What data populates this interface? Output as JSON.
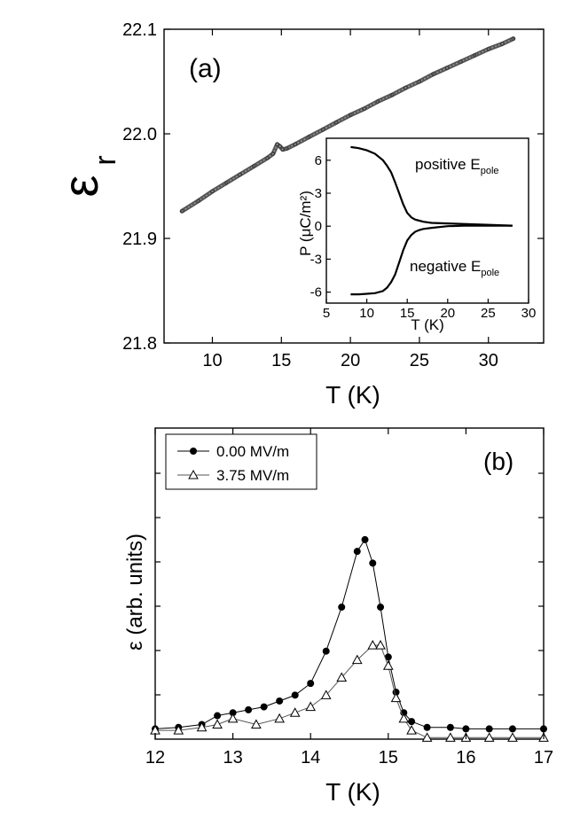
{
  "chart_data": [
    {
      "type": "line",
      "panel_label": "(a)",
      "xlabel": "T (K)",
      "ylabel": "ε",
      "ylabel_sub": "r",
      "xlim": [
        6.5,
        34
      ],
      "ylim": [
        21.8,
        22.1
      ],
      "xticks": [
        "10",
        "15",
        "20",
        "25",
        "30"
      ],
      "yticks": [
        "21.8",
        "21.9",
        "22.0",
        "22.1"
      ],
      "series_style": "dense open circles (dark gray)",
      "series": [
        {
          "x": [
            7.8,
            9,
            10,
            11,
            12,
            13,
            14,
            14.4,
            14.7,
            14.9,
            15.1,
            15.4,
            16,
            17,
            18,
            19,
            20,
            21,
            22,
            23,
            24,
            25,
            26,
            27,
            28,
            29,
            30,
            31,
            31.8
          ],
          "y": [
            21.926,
            21.936,
            21.945,
            21.953,
            21.961,
            21.969,
            21.977,
            21.981,
            21.99,
            21.988,
            21.985,
            21.986,
            21.99,
            21.997,
            22.004,
            22.011,
            22.018,
            22.024,
            22.031,
            22.037,
            22.044,
            22.05,
            22.057,
            22.063,
            22.069,
            22.075,
            22.081,
            22.086,
            22.091
          ]
        }
      ],
      "inset": {
        "type": "line",
        "xlabel": "T (K)",
        "ylabel": "P (μC/m²)",
        "xlim": [
          5,
          30
        ],
        "ylim": [
          -7,
          8
        ],
        "xticks": [
          "5",
          "10",
          "15",
          "20",
          "25",
          "30"
        ],
        "yticks": [
          "-6",
          "-3",
          "0",
          "3",
          "6"
        ],
        "annotations": [
          {
            "text": "positive E",
            "sub": "pole"
          },
          {
            "text": "negative E",
            "sub": "pole"
          }
        ],
        "series": [
          {
            "name": "positive E_pole",
            "x": [
              8,
              9,
              10,
              11,
              12,
              12.5,
              13,
              13.5,
              14,
              14.5,
              15,
              15.5,
              16,
              16.5,
              17,
              18,
              20,
              22,
              24,
              26,
              28
            ],
            "y": [
              7.2,
              7.1,
              6.9,
              6.6,
              6.0,
              5.5,
              4.9,
              4.0,
              3.0,
              2.0,
              1.2,
              0.8,
              0.6,
              0.5,
              0.4,
              0.3,
              0.25,
              0.2,
              0.15,
              0.1,
              0.05
            ]
          },
          {
            "name": "negative E_pole",
            "x": [
              8,
              9,
              10,
              11,
              12,
              12.5,
              13,
              13.5,
              14,
              14.5,
              15,
              15.5,
              16,
              16.5,
              17,
              18,
              20,
              22,
              24,
              26,
              28
            ],
            "y": [
              -6.2,
              -6.2,
              -6.15,
              -6.1,
              -5.9,
              -5.6,
              -5.1,
              -4.4,
              -3.3,
              -2.2,
              -1.3,
              -0.8,
              -0.5,
              -0.35,
              -0.25,
              -0.15,
              0.0,
              0.05,
              0.05,
              0.05,
              0.05
            ]
          }
        ]
      }
    },
    {
      "type": "line",
      "panel_label": "(b)",
      "xlabel": "T (K)",
      "ylabel": "ε (arb. units)",
      "xlim": [
        12,
        17
      ],
      "ylim": [
        0,
        100
      ],
      "xticks": [
        "12",
        "13",
        "14",
        "15",
        "16",
        "17"
      ],
      "yticks": [],
      "legend_position": "top-left",
      "series": [
        {
          "name": "0.00 MV/m",
          "marker": "filled-circle",
          "x": [
            12.0,
            12.3,
            12.6,
            12.8,
            13.0,
            13.2,
            13.4,
            13.6,
            13.8,
            14.0,
            14.2,
            14.4,
            14.6,
            14.7,
            14.8,
            14.9,
            15.0,
            15.1,
            15.2,
            15.3,
            15.5,
            15.8,
            16.0,
            16.3,
            16.6,
            17.0
          ],
          "y": [
            3.5,
            4,
            5,
            8,
            9,
            10,
            11,
            13,
            15,
            19,
            30,
            45,
            64,
            68,
            60,
            45,
            28,
            16,
            9,
            6,
            4,
            4,
            3.5,
            3.5,
            3.5,
            3.5
          ]
        },
        {
          "name": "3.75 MV/m",
          "marker": "open-triangle",
          "x": [
            12.0,
            12.3,
            12.6,
            12.8,
            13.0,
            13.3,
            13.6,
            13.8,
            14.0,
            14.2,
            14.4,
            14.6,
            14.8,
            14.9,
            15.0,
            15.1,
            15.2,
            15.3,
            15.5,
            15.8,
            16.0,
            16.3,
            16.6,
            17.0
          ],
          "y": [
            3,
            3,
            4,
            5,
            7,
            5,
            7,
            9,
            11,
            15,
            21,
            27,
            32,
            32,
            25,
            14,
            7,
            3,
            0.5,
            0.5,
            0.5,
            0.5,
            0.5,
            0.5
          ]
        }
      ]
    }
  ]
}
